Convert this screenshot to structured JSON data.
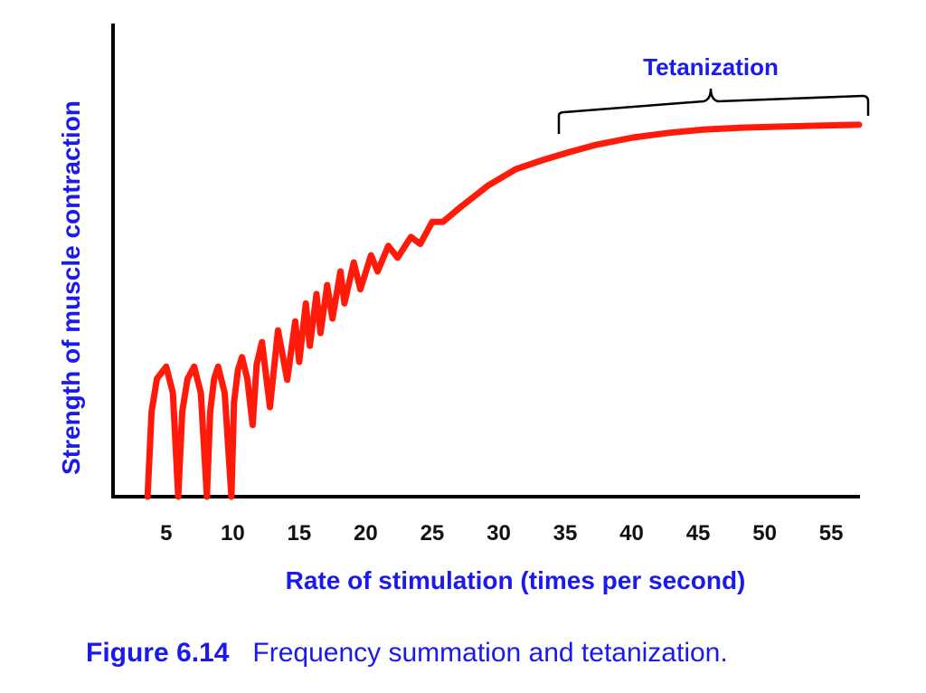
{
  "chart_data": {
    "type": "line",
    "xlabel": "Rate of stimulation (times per second)",
    "ylabel": "Strength of muscle contraction",
    "annotation": "Tetanization",
    "caption": {
      "label": "Figure 6.14",
      "text": "Frequency summation and tetanization."
    },
    "color": "#ff1a0a",
    "xlim": [
      1,
      57.1
    ],
    "ylim": [
      0,
      100
    ],
    "xticks": [
      5,
      10,
      15,
      20,
      25,
      30,
      35,
      40,
      45,
      50,
      55
    ],
    "grid": false,
    "x": [
      3.6,
      3.9,
      4.3,
      5,
      5.5,
      5.9,
      6.2,
      6.6,
      7.1,
      7.6,
      8.06,
      8.3,
      8.6,
      8.9,
      9.4,
      9.9,
      10.1,
      10.4,
      10.7,
      11.1,
      11.5,
      11.8,
      12.2,
      12.8,
      13.4,
      14.1,
      14.7,
      15,
      15.5,
      15.8,
      16.3,
      16.6,
      17.1,
      17.5,
      18.1,
      18.4,
      19.1,
      19.6,
      20.4,
      20.9,
      21.7,
      22.4,
      23.4,
      24.1,
      25,
      25.8,
      27.2,
      29.2,
      31.3,
      33.3,
      35.3,
      37.4,
      40.1,
      42.8,
      45.5,
      48.3,
      51,
      53.7,
      57.1
    ],
    "values": [
      0,
      18,
      25,
      27.6,
      22,
      0,
      18,
      25,
      27.6,
      22,
      0,
      18,
      25,
      27.6,
      22,
      0,
      20,
      27,
      29.6,
      25,
      15.2,
      28,
      32.8,
      19,
      35.3,
      24.8,
      37.2,
      28.6,
      41,
      32,
      43,
      34.7,
      44.9,
      37.8,
      47.8,
      41,
      49.7,
      44,
      51.2,
      47.8,
      53.2,
      50.7,
      55.1,
      53.6,
      58.3,
      58.3,
      61.6,
      66,
      69.5,
      71.4,
      73.1,
      74.7,
      76.2,
      77.2,
      77.9,
      78.3,
      78.5,
      78.7,
      78.9
    ]
  }
}
